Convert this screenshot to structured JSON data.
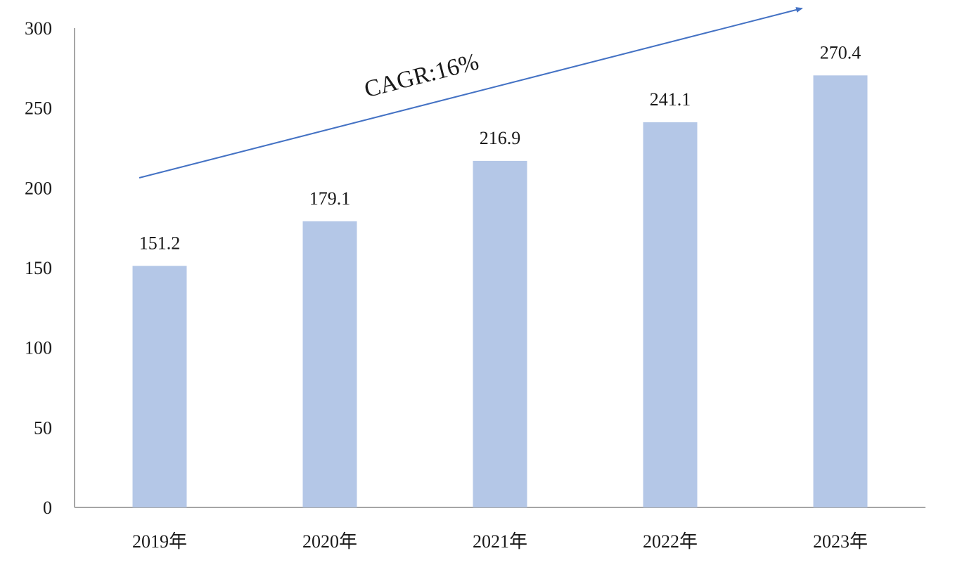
{
  "chart_data": {
    "type": "bar",
    "categories": [
      "2019年",
      "2020年",
      "2021年",
      "2022年",
      "2023年"
    ],
    "values": [
      151.2,
      179.1,
      216.9,
      241.1,
      270.4
    ],
    "data_labels": [
      "151.2",
      "179.1",
      "216.9",
      "241.1",
      "270.4"
    ],
    "y_ticks": [
      "0",
      "50",
      "100",
      "150",
      "200",
      "250",
      "300"
    ],
    "ylim": [
      0,
      300
    ],
    "grid": false,
    "legend": "none",
    "annotation": "CAGR:16%",
    "bar_color": "#b4c7e7",
    "arrow_color": "#4472c4",
    "axis_color": "#a6a6a6"
  }
}
